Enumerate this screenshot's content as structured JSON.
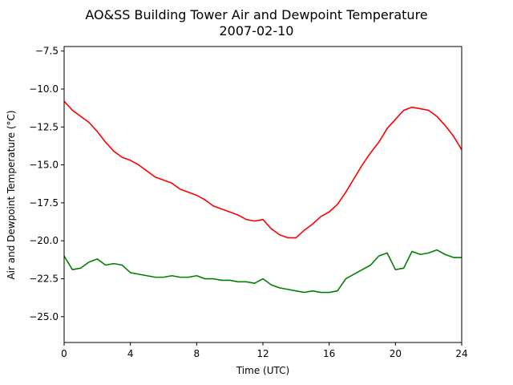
{
  "chart_data": {
    "type": "line",
    "title": "AO&SS Building Tower Air and Dewpoint Temperature",
    "subtitle": "2007-02-10",
    "xlabel": "Time (UTC)",
    "ylabel": "Air and Dewpoint Temperature (°C)",
    "xlim": [
      0,
      24
    ],
    "ylim": [
      -26.7,
      -7.2
    ],
    "xticks": [
      0,
      4,
      8,
      12,
      16,
      20,
      24
    ],
    "xtick_labels": [
      "0",
      "4",
      "8",
      "12",
      "16",
      "20",
      "24"
    ],
    "yticks": [
      -25.0,
      -22.5,
      -20.0,
      -17.5,
      -15.0,
      -12.5,
      -10.0,
      -7.5
    ],
    "ytick_labels": [
      "−25.0",
      "−22.5",
      "−20.0",
      "−17.5",
      "−15.0",
      "−12.5",
      "−10.0",
      "−7.5"
    ],
    "grid": false,
    "series": [
      {
        "color": "#ff0000",
        "x": [
          0,
          0.5,
          1,
          1.5,
          2,
          2.5,
          3,
          3.5,
          4,
          4.5,
          5,
          5.5,
          6,
          6.5,
          7,
          7.5,
          8,
          8.5,
          9,
          9.5,
          10,
          10.5,
          11,
          11.5,
          12,
          12.5,
          13,
          13.5,
          14,
          14.5,
          15,
          15.5,
          16,
          16.5,
          17,
          17.5,
          18,
          18.5,
          19,
          19.5,
          20,
          20.5,
          21,
          21.5,
          22,
          22.5,
          23,
          23.5,
          24
        ],
        "y": [
          -10.8,
          -11.4,
          -11.8,
          -12.2,
          -12.8,
          -13.5,
          -14.1,
          -14.5,
          -14.7,
          -15.0,
          -15.4,
          -15.8,
          -16.0,
          -16.2,
          -16.6,
          -16.8,
          -17.0,
          -17.3,
          -17.7,
          -17.9,
          -18.1,
          -18.3,
          -18.6,
          -18.7,
          -18.6,
          -19.2,
          -19.6,
          -19.8,
          -19.8,
          -19.3,
          -18.9,
          -18.4,
          -18.1,
          -17.6,
          -16.8,
          -15.9,
          -15.0,
          -14.2,
          -13.5,
          -12.6,
          -12.0,
          -11.4,
          -11.2,
          -11.3,
          -11.4,
          -11.8,
          -12.4,
          -13.1,
          -14.0
        ]
      },
      {
        "color": "#008000",
        "x": [
          0,
          0.5,
          1,
          1.5,
          2,
          2.5,
          3,
          3.5,
          4,
          4.5,
          5,
          5.5,
          6,
          6.5,
          7,
          7.5,
          8,
          8.5,
          9,
          9.5,
          10,
          10.5,
          11,
          11.5,
          12,
          12.5,
          13,
          13.5,
          14,
          14.5,
          15,
          15.5,
          16,
          16.5,
          17,
          17.5,
          18,
          18.5,
          19,
          19.5,
          20,
          20.5,
          21,
          21.5,
          22,
          22.5,
          23,
          23.5,
          24
        ],
        "y": [
          -21.0,
          -21.9,
          -21.8,
          -21.4,
          -21.2,
          -21.6,
          -21.5,
          -21.6,
          -22.1,
          -22.2,
          -22.3,
          -22.4,
          -22.4,
          -22.3,
          -22.4,
          -22.4,
          -22.3,
          -22.5,
          -22.5,
          -22.6,
          -22.6,
          -22.7,
          -22.7,
          -22.8,
          -22.5,
          -22.9,
          -23.1,
          -23.2,
          -23.3,
          -23.4,
          -23.3,
          -23.4,
          -23.4,
          -23.3,
          -22.5,
          -22.2,
          -21.9,
          -21.6,
          -21.0,
          -20.8,
          -21.9,
          -21.8,
          -20.7,
          -20.9,
          -20.8,
          -20.6,
          -20.9,
          -21.1,
          -21.1
        ]
      }
    ]
  }
}
